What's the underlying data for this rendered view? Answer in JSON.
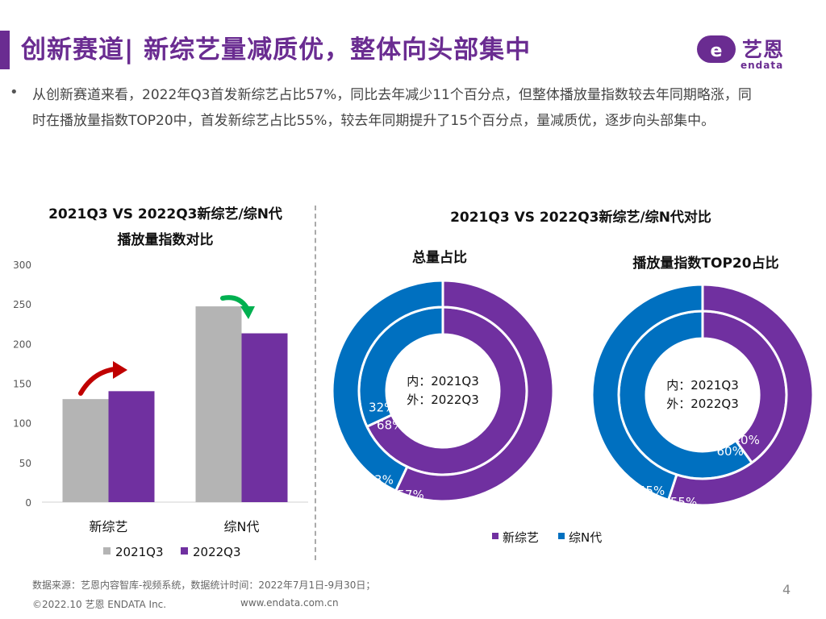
{
  "header": {
    "title": "创新赛道| 新综艺量减质优，整体向头部集中",
    "logo_text": "艺恩",
    "logo_sub": "endata"
  },
  "summary": {
    "bullet": "•",
    "text": "从创新赛道来看，2022年Q3首发新综艺占比57%，同比去年减少11个百分点，但整体播放量指数较去年同期略涨，同时在播放量指数TOP20中，首发新综艺占比55%，较去年同期提升了15个百分点，量减质优，逐步向头部集中。"
  },
  "left_chart": {
    "title_line1": "2021Q3 VS 2022Q3新综艺/综N代",
    "title_line2": "播放量指数对比"
  },
  "right_chart": {
    "title": "2021Q3 VS 2022Q3新综艺/综N代对比",
    "sub1": "总量占比",
    "sub2": "播放量指数TOP20占比",
    "center_inner": "内：2021Q3",
    "center_outer": "外：2022Q3"
  },
  "colors": {
    "purple": "#7030a0",
    "blue": "#0070c0",
    "gray": "#b4b4b4",
    "brand": "#6a2c91",
    "arrow_red": "#c00000",
    "arrow_green": "#00b050"
  },
  "chart_data": [
    {
      "type": "bar",
      "categories": [
        "新综艺",
        "综N代"
      ],
      "series": [
        {
          "name": "2021Q3",
          "values": [
            130,
            247
          ]
        },
        {
          "name": "2022Q3",
          "values": [
            140,
            213
          ]
        }
      ],
      "ylim": [
        0,
        300
      ],
      "yticks": [
        "0",
        "50",
        "100",
        "150",
        "200",
        "250",
        "300"
      ],
      "legend": "bottom"
    },
    {
      "type": "pie",
      "variant": "double-donut",
      "categories": [
        "新综艺",
        "综N代"
      ],
      "series": [
        {
          "name": "2021Q3",
          "ring": "inner",
          "values": [
            68,
            32
          ],
          "labels": [
            "68%",
            "32%"
          ]
        },
        {
          "name": "2022Q3",
          "ring": "outer",
          "values": [
            57,
            43
          ],
          "labels": [
            "57%",
            "43%"
          ]
        }
      ]
    },
    {
      "type": "pie",
      "variant": "double-donut",
      "categories": [
        "新综艺",
        "综N代"
      ],
      "series": [
        {
          "name": "2021Q3",
          "ring": "inner",
          "values": [
            40,
            60
          ],
          "labels": [
            "40%",
            "60%"
          ]
        },
        {
          "name": "2022Q3",
          "ring": "outer",
          "values": [
            55,
            45
          ],
          "labels": [
            "55%",
            "45%"
          ]
        }
      ],
      "legend": "bottom"
    }
  ],
  "footer": {
    "source": "数据来源：艺恩内容智库-视频系统，数据统计时间：2022年7月1日-9月30日；",
    "copyright": "©2022.10 艺恩 ENDATA Inc.",
    "url": "www.endata.com.cn",
    "page": "4"
  }
}
